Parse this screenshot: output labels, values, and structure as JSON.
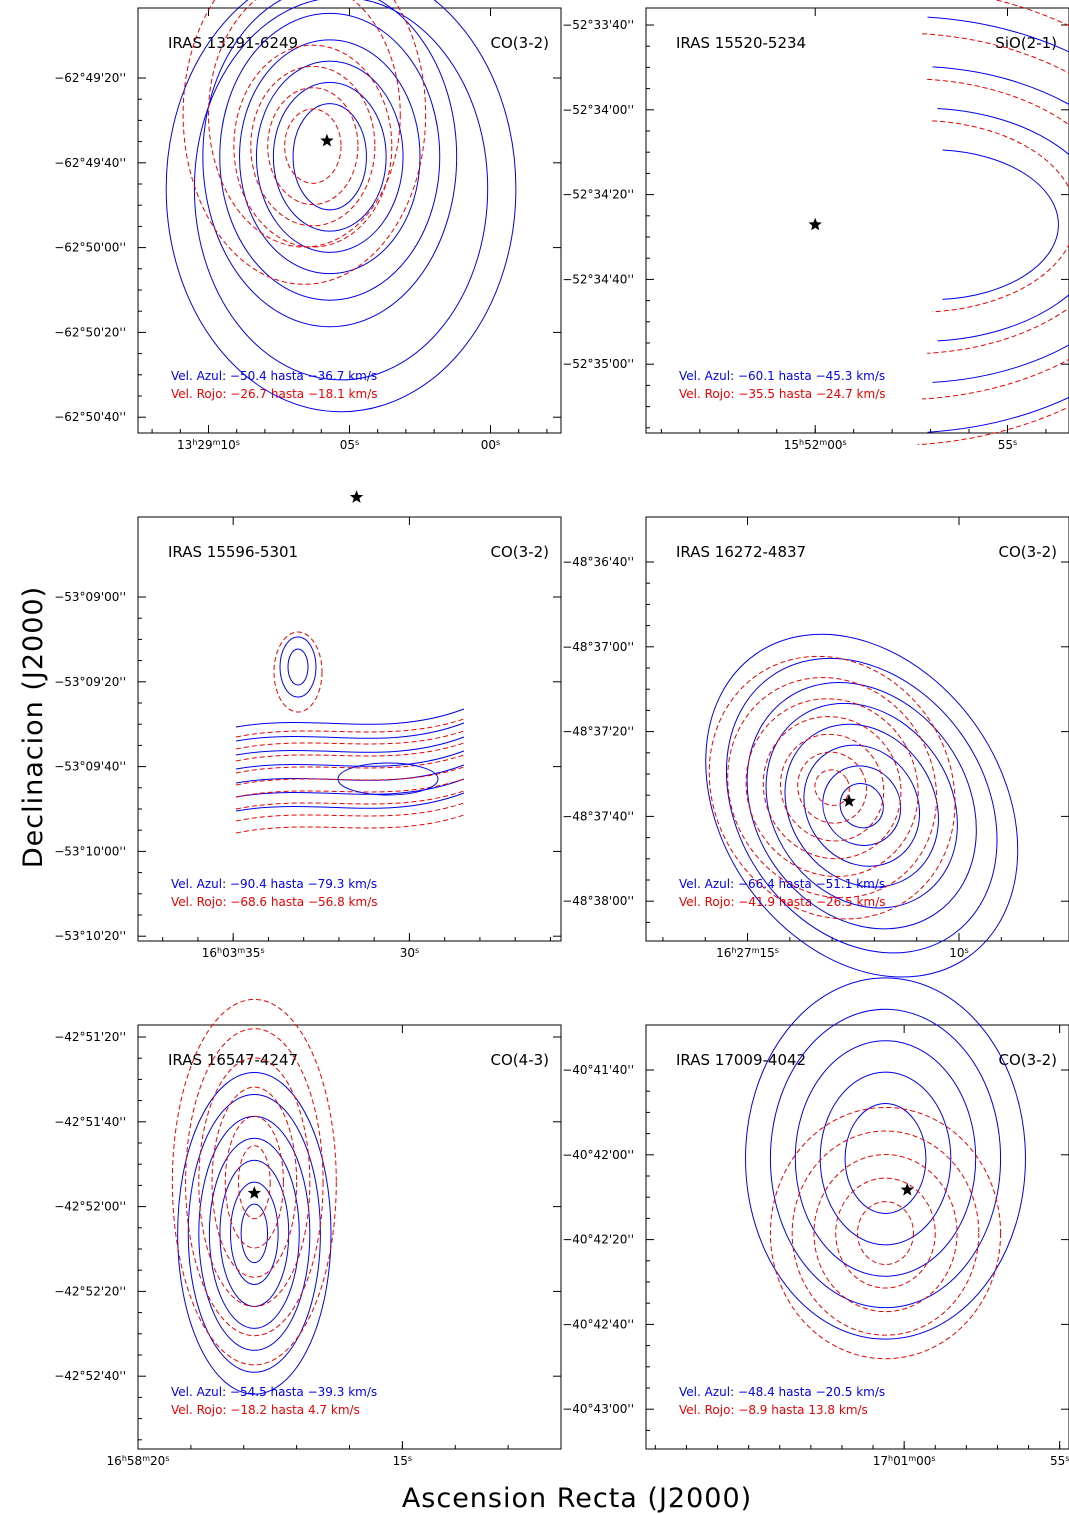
{
  "figure": {
    "xlabel": "Ascension Recta (J2000)",
    "ylabel": "Declinacion (J2000)"
  },
  "colors": {
    "blue": "#0000ee",
    "red": "#ee0000",
    "frame": "#000000"
  },
  "chart_data": [
    {
      "type": "contour",
      "source": "IRAS 13291-6249",
      "line": "CO(3-2)",
      "blue_text": "Vel. Azul: −50.4 hasta −36.7 km/s",
      "red_text": "Vel. Rojo: −26.7 hasta −18.1 km/s",
      "x_ticks": [
        {
          "label": "13h29m10s",
          "h": "13",
          "m": "29",
          "s": "10",
          "x": 10
        },
        {
          "label": "05s",
          "s": "05",
          "x": 5
        },
        {
          "label": "00s",
          "s": "00",
          "x": 0
        }
      ],
      "y_ticks": [
        "−62°49'20''",
        "−62°49'40''",
        "−62°50'00''",
        "−62°50'20''",
        "−62°50'40''"
      ],
      "star": {
        "x": 5.8,
        "y": -7
      },
      "blue_contours": [
        {
          "cx": 5.7,
          "cy": -10,
          "rx": [
            1.3,
            2.0,
            2.6,
            3.2,
            3.9,
            4.5
          ],
          "ry": [
            10,
            14,
            18,
            22,
            27,
            32
          ]
        },
        {
          "cx": 5.3,
          "cy": -16,
          "rx": [
            5.2,
            6.2
          ],
          "ry": [
            36,
            42
          ]
        }
      ],
      "red_contours": [
        {
          "cx": 6.3,
          "cy": -8,
          "rx": [
            1.0,
            1.6,
            2.2,
            2.8
          ],
          "ry": [
            7,
            11,
            15,
            19
          ]
        },
        {
          "cx": 6.6,
          "cy": -2,
          "rx": [
            3.4,
            4.3
          ],
          "ry": [
            25,
            32
          ]
        }
      ],
      "xlim": [
        12.5,
        -2.5
      ],
      "ylim": [
        -62,
        18
      ]
    },
    {
      "type": "contour",
      "source": "IRAS 15520-5234",
      "line": "SiO(2-1)",
      "blue_text": "Vel. Azul: −60.1 hasta −45.3 km/s",
      "red_text": "Vel. Rojo: −35.5 hasta −24.7 km/s",
      "x_ticks": [
        {
          "label": "15h52m00s",
          "h": "15",
          "m": "52",
          "s": "00",
          "x": 0
        },
        {
          "label": "55s",
          "s": "55",
          "x": -5
        }
      ],
      "y_ticks": [
        "−52°33'40''",
        "−52°34'00''",
        "−52°34'20''",
        "−52°34'40''",
        "−52°35'00''"
      ],
      "star": {
        "x": 0,
        "y": -26
      },
      "blue_arcs": [
        {
          "cx": -3.6,
          "cy": -26,
          "r": [
            3.3,
            4.8,
            6.3,
            7.8
          ],
          "ry": [
            18,
            28,
            38,
            50
          ],
          "a0": 95,
          "a1": 265
        }
      ],
      "red_arcs": [
        {
          "cx": -3.4,
          "cy": -24,
          "r": [
            4.1,
            5.6,
            7.1,
            8.4
          ],
          "ry": [
            23,
            33,
            44,
            55
          ],
          "a0": 95,
          "a1": 265
        }
      ],
      "xlim": [
        4.4,
        -6.6
      ],
      "ylim": [
        -76,
        26
      ]
    },
    {
      "type": "contour",
      "source": "IRAS 15596-5301",
      "line": "CO(3-2)",
      "blue_text": "Vel. Azul: −90.4  hasta −79.3 km/s",
      "red_text": "Vel. Rojo: −68.6 hasta −56.8 km/s",
      "x_ticks": [
        {
          "label": "16h03m35s",
          "h": "16",
          "m": "03",
          "s": "35",
          "x": 35
        },
        {
          "label": "30s",
          "s": "30",
          "x": 30
        }
      ],
      "y_ticks": [
        "−53°09'00''",
        "−53°09'20''",
        "−53°09'40''",
        "−53°10'00''",
        "−53°10'20''"
      ],
      "star": {
        "x": 31.5,
        "y": 29
      },
      "blue_bands": 7,
      "red_bands": 9,
      "xlim": [
        37.7,
        25.7
      ],
      "ylim": [
        -61,
        25
      ]
    },
    {
      "type": "contour",
      "source": "IRAS 16272-4837",
      "line": "CO(3-2)",
      "blue_text": "Vel. Azul: −66.4 hasta −51.1 km/s",
      "red_text": "Vel. Rojo: −41.9 hasta −26.5 km/s",
      "x_ticks": [
        {
          "label": "16h27m15s",
          "h": "16",
          "m": "27",
          "s": "15",
          "x": 15
        },
        {
          "label": "10s",
          "s": "10",
          "x": 10
        }
      ],
      "y_ticks": [
        "−48°36'40''",
        "−48°37'00''",
        "−48°37'20''",
        "−48°37'40''",
        "−48°38'00''"
      ],
      "star": {
        "x": 12.6,
        "y": 19
      },
      "blue_contours": [
        {
          "cx": 12.3,
          "cy": 18,
          "rx": [
            0.5,
            0.9,
            1.3,
            1.7,
            2.1,
            2.5,
            2.9,
            3.3
          ],
          "ry": [
            5,
            9,
            14,
            19,
            24,
            29,
            35,
            41
          ],
          "tilt": -35
        }
      ],
      "red_contours": [
        {
          "cx": 13.0,
          "cy": 22,
          "rx": [
            0.4,
            0.8,
            1.2,
            1.6,
            2.0,
            2.4,
            2.8
          ],
          "ry": [
            4,
            8,
            12,
            16,
            20,
            25,
            30
          ],
          "tilt": -30
        }
      ],
      "xlim": [
        17.4,
        7.4
      ],
      "ylim": [
        -12,
        82
      ]
    },
    {
      "type": "contour",
      "source": "IRAS 16547-4247",
      "line": "CO(4-3)",
      "blue_text": "Vel. Azul: −54.5 hasta −39.3 km/s",
      "red_text": "Vel. Rojo: −18.2 hasta 4.7 km/s",
      "x_ticks": [
        {
          "label": "16h58m20s",
          "h": "16",
          "m": "58",
          "s": "20",
          "x": 20
        },
        {
          "label": "15s",
          "s": "15",
          "x": 15
        }
      ],
      "y_ticks": [
        "−42°51'20''",
        "−42°51'40''",
        "−42°52'00''",
        "−42°52'20''",
        "−42°52'40''"
      ],
      "star": {
        "x": 17.8,
        "y": -47
      },
      "blue_contours": [
        {
          "cx": 17.8,
          "cy": -58,
          "rx": [
            0.25,
            0.45,
            0.65,
            0.85,
            1.05,
            1.25,
            1.45
          ],
          "ry": [
            8,
            14,
            20,
            26,
            32,
            38,
            44
          ]
        }
      ],
      "red_contours": [
        {
          "cx": 17.8,
          "cy": -44,
          "rx": [
            0.3,
            0.55,
            0.8,
            1.05,
            1.3,
            1.55
          ],
          "ry": [
            10,
            18,
            26,
            34,
            42,
            50
          ]
        }
      ],
      "xlim": [
        20.0,
        12.0
      ],
      "ylim": [
        -117,
        -1
      ]
    },
    {
      "type": "contour",
      "source": "IRAS 17009-4042",
      "line": "CO(3-2)",
      "blue_text": "Vel. Azul: −48.4 hasta −20.5 km/s",
      "red_text": "Vel. Rojo: −8.9 hasta 13.8 km/s",
      "x_ticks": [
        {
          "label": "17h01m00s",
          "h": "17",
          "m": "01",
          "s": "00",
          "x": 0
        },
        {
          "label": "55s",
          "s": "55",
          "x": -5
        }
      ],
      "y_ticks": [
        "−40°41'40''",
        "−40°42'00''",
        "−40°42'20''",
        "−40°42'40''",
        "−40°43'00''"
      ],
      "star": {
        "x": -0.1,
        "y": -19
      },
      "blue_contours": [
        {
          "cx": 0.6,
          "cy": -11,
          "rx": [
            1.3,
            2.1,
            2.9,
            3.7,
            4.5
          ],
          "ry": [
            14,
            22,
            30,
            38,
            46
          ]
        }
      ],
      "red_contours": [
        {
          "cx": 0.6,
          "cy": -30,
          "rx": [
            0.9,
            1.6,
            2.3,
            3.0,
            3.7
          ],
          "ry": [
            8,
            14,
            20,
            26,
            32
          ]
        }
      ],
      "xlim": [
        8.3,
        -5.3
      ],
      "ylim": [
        -85,
        23
      ]
    }
  ]
}
